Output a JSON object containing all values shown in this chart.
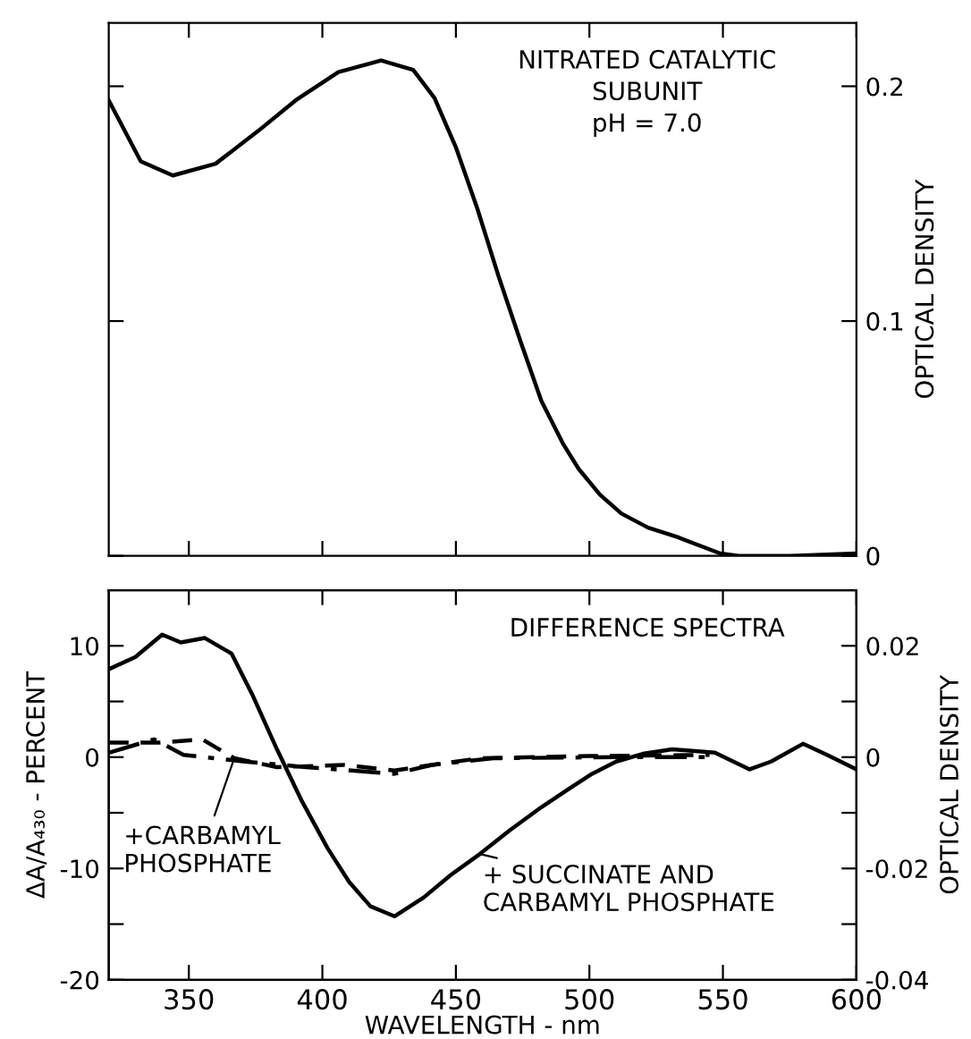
{
  "chart_data": [
    {
      "type": "line",
      "title": "NITRATED CATALYTIC\nSUBUNIT\npH = 7.0",
      "ylabel": "OPTICAL DENSITY",
      "xlim": [
        320,
        600
      ],
      "xticks": [
        {
          "value": 350,
          "label": null
        },
        {
          "value": 400,
          "label": null
        },
        {
          "value": 450,
          "label": null
        },
        {
          "value": 500,
          "label": null
        },
        {
          "value": 550,
          "label": null
        },
        {
          "value": 600,
          "label": null
        }
      ],
      "ylim": [
        0,
        0.227
      ],
      "yticks": [
        0,
        0.1,
        0.2
      ],
      "tick_labels": "y",
      "grid": false,
      "legend": false,
      "series": [
        {
          "color": "#000000",
          "line_style": "solid",
          "x": [
            320,
            332,
            344,
            360,
            376,
            390,
            406,
            422,
            434,
            442,
            450,
            458,
            466,
            474,
            482,
            490,
            496,
            504,
            512,
            522,
            533,
            549,
            556,
            575,
            600
          ],
          "values": [
            0.194,
            0.168,
            0.162,
            0.167,
            0.181,
            0.194,
            0.206,
            0.211,
            0.207,
            0.195,
            0.174,
            0.148,
            0.119,
            0.092,
            0.066,
            0.048,
            0.037,
            0.026,
            0.018,
            0.012,
            0.008,
            0.001,
            0,
            0,
            0.001
          ]
        }
      ]
    },
    {
      "type": "line",
      "title": "DIFFERENCE SPECTRA",
      "xlabel": "WAVELENGTH - nm",
      "ylabel": "ΔA/A₄₃₀ - PERCENT",
      "y2label": "OPTICAL DENSITY",
      "xlim": [
        320,
        600
      ],
      "xticks": [
        350,
        400,
        450,
        500,
        550,
        600
      ],
      "ylim": [
        -20,
        15
      ],
      "yticks": [
        -20,
        {
          "value": -15,
          "label": null
        },
        -10,
        {
          "value": -5,
          "label": null
        },
        0,
        {
          "value": 5,
          "label": null
        },
        10
      ],
      "y2lim": [
        -0.04,
        0.03
      ],
      "y2ticks": [
        -0.04,
        {
          "value": -0.03,
          "label": null
        },
        -0.02,
        {
          "value": -0.01,
          "label": null
        },
        0,
        {
          "value": 0.01,
          "label": null
        },
        0.02
      ],
      "grid": false,
      "legend": false,
      "annotations": [
        {
          "text": "+ SUCCINATE AND\nCARBAMYL PHOSPHATE",
          "x": 459,
          "y": -8.7
        },
        {
          "text": "+CARBAMYL\nPHOSPHATE",
          "x": 367,
          "y": -0.1
        }
      ],
      "series": [
        {
          "color": "#000000",
          "line_style": "solid",
          "x": [
            320,
            330,
            340,
            347,
            356,
            366,
            374,
            383,
            392,
            402,
            410,
            418,
            427,
            438,
            448,
            459,
            470,
            482,
            492,
            501,
            510,
            520,
            531,
            547,
            560,
            568,
            580,
            589,
            600
          ],
          "values": [
            7.9,
            9.0,
            11.0,
            10.3,
            10.7,
            9.3,
            5.5,
            0.7,
            -3.8,
            -8.2,
            -11.2,
            -13.4,
            -14.3,
            -12.6,
            -10.6,
            -8.7,
            -6.6,
            -4.5,
            -2.9,
            -1.5,
            -0.4,
            0.3,
            0.7,
            0.4,
            -1.1,
            -0.4,
            1.2,
            0.2,
            -1.1
          ]
        },
        {
          "color": "#000000",
          "line_style": "dashed",
          "x": [
            320,
            339,
            355,
            367,
            383,
            408,
            427,
            441,
            459,
            500,
            545
          ],
          "values": [
            1.3,
            1.3,
            1.6,
            -0.1,
            -0.9,
            -0.7,
            -1.2,
            -0.7,
            -0.1,
            0.1,
            0.2
          ]
        },
        {
          "color": "#000000",
          "line_style": "dashdot",
          "x": [
            320,
            337,
            348,
            371,
            394,
            427,
            441,
            464,
            510,
            545
          ],
          "values": [
            0.4,
            1.6,
            0.2,
            -0.4,
            -0.9,
            -1.5,
            -0.7,
            -0.1,
            0,
            0
          ]
        }
      ]
    }
  ]
}
